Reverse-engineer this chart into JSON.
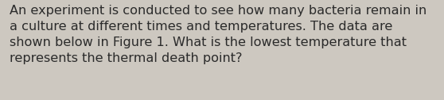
{
  "text": "An experiment is conducted to see how many bacteria remain in\na culture at different times and temperatures. The data are\nshown below in Figure 1. What is the lowest temperature that\nrepresents the thermal death point?",
  "background_color": "#cdc8c0",
  "text_color": "#2b2b2b",
  "font_size": 11.6,
  "fig_width": 5.58,
  "fig_height": 1.26,
  "dpi": 100
}
